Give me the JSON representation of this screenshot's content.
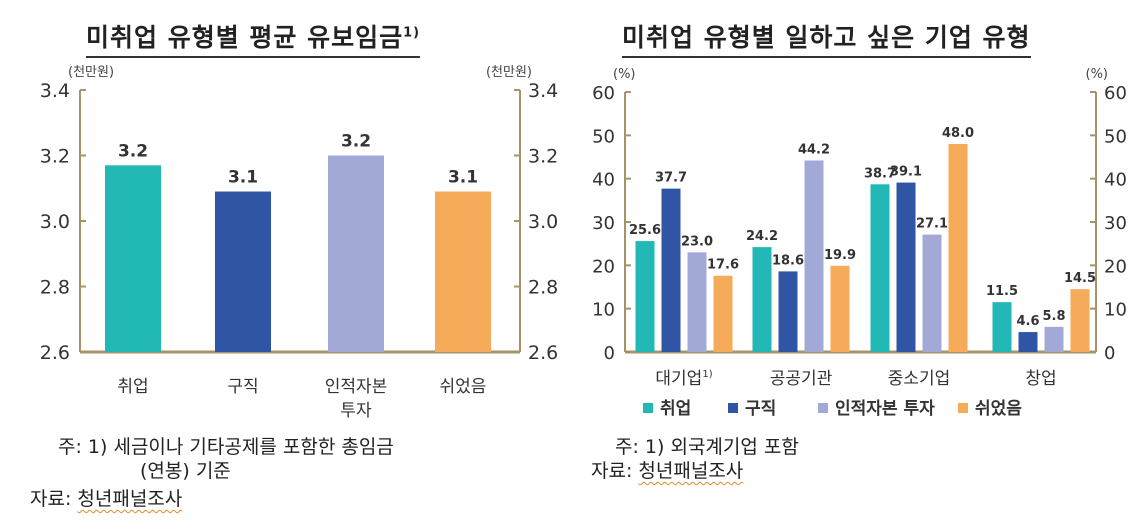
{
  "chart_data": [
    {
      "type": "bar",
      "title": "미취업 유형별 평균 유보임금",
      "title_footnote": "1)",
      "ylabel": "(천만원)",
      "ylabel_right": "(천만원)",
      "ylim": [
        2.6,
        3.4
      ],
      "yticks": [
        "2.6",
        "2.8",
        "3.0",
        "3.2",
        "3.4"
      ],
      "categories": [
        "취업",
        "구직",
        "인적자본\n투자",
        "쉬었음"
      ],
      "values": [
        3.17,
        3.09,
        3.2,
        3.09
      ],
      "data_labels": [
        "3.2",
        "3.1",
        "3.2",
        "3.1"
      ],
      "colors": [
        "#22b8b5",
        "#2f55a4",
        "#a3a9d6",
        "#f6ab5a"
      ],
      "grid": false
    },
    {
      "type": "bar",
      "title": "미취업 유형별 일하고 싶은 기업 유형",
      "ylabel": "(%)",
      "ylabel_right": "(%)",
      "ylim": [
        0,
        60
      ],
      "yticks": [
        "0",
        "10",
        "20",
        "30",
        "40",
        "50",
        "60"
      ],
      "categories": [
        "대기업",
        "공공기관",
        "중소기업",
        "창업"
      ],
      "category_footnote": [
        "1)",
        "",
        "",
        ""
      ],
      "series": [
        {
          "name": "취업",
          "values": [
            25.6,
            24.2,
            38.7,
            11.5
          ],
          "labels": [
            "25.6",
            "24.2",
            "38.7",
            "11.5"
          ],
          "color": "#22b8b5"
        },
        {
          "name": "구직",
          "values": [
            37.7,
            18.6,
            39.1,
            4.6
          ],
          "labels": [
            "37.7",
            "18.6",
            "39.1",
            "4.6"
          ],
          "color": "#2f55a4"
        },
        {
          "name": "인적자본 투자",
          "values": [
            23.0,
            44.2,
            27.1,
            5.8
          ],
          "labels": [
            "23.0",
            "44.2",
            "27.1",
            "5.8"
          ],
          "color": "#a3a9d6"
        },
        {
          "name": "쉬었음",
          "values": [
            17.6,
            19.9,
            48.0,
            14.5
          ],
          "labels": [
            "17.6",
            "19.9",
            "48.0",
            "14.5"
          ],
          "color": "#f6ab5a"
        }
      ],
      "legend": "bottom",
      "grid": false
    }
  ],
  "notes": {
    "left_note1": "주:  1)  세금이나  기타공제를  포함한  총임금",
    "left_note2": "(연봉)  기준",
    "left_source_label": "자료: ",
    "left_source": "청년패널조사",
    "right_note1": "주:  1) 외국계기업  포함",
    "right_source_label": "자료: ",
    "right_source": "청년패널조사"
  }
}
